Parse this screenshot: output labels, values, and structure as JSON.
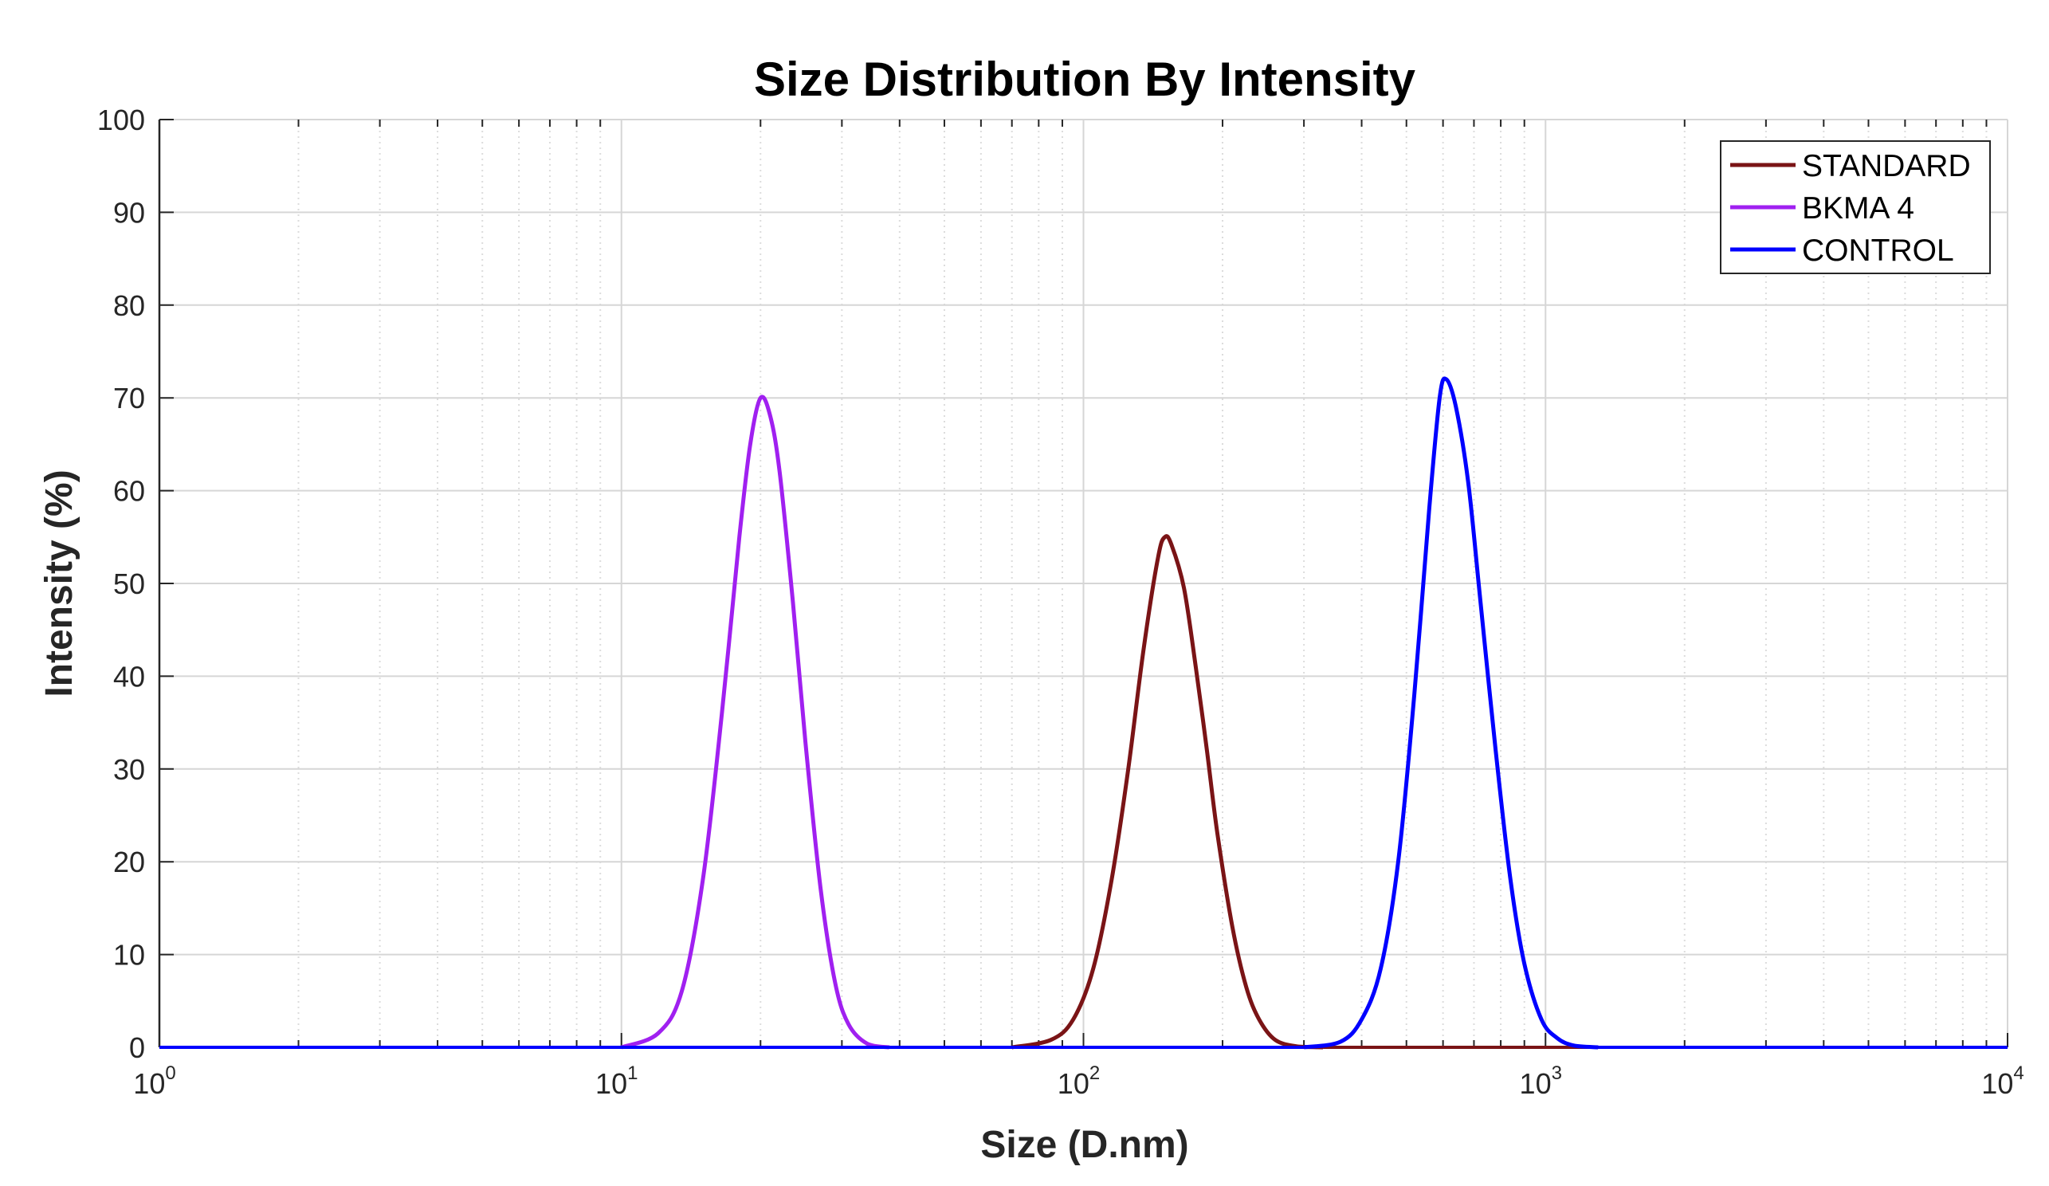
{
  "chart_data": {
    "type": "line",
    "title": "Size Distribution By Intensity",
    "xlabel": "Size (D.nm)",
    "ylabel": "Intensity (%)",
    "xscale": "log",
    "xlim": [
      1,
      10000
    ],
    "ylim": [
      0,
      100
    ],
    "x_ticks": [
      {
        "base": "10",
        "exp": "0"
      },
      {
        "base": "10",
        "exp": "1"
      },
      {
        "base": "10",
        "exp": "2"
      },
      {
        "base": "10",
        "exp": "3"
      },
      {
        "base": "10",
        "exp": "4"
      }
    ],
    "y_ticks": [
      "0",
      "10",
      "20",
      "30",
      "40",
      "50",
      "60",
      "70",
      "80",
      "90",
      "100"
    ],
    "grid": true,
    "legend_position": "top-right",
    "series": [
      {
        "name": "STANDARD",
        "color": "#7a1416",
        "x": [
          70,
          85,
          95,
          105,
          115,
          125,
          135,
          145,
          150,
          155,
          165,
          175,
          185,
          195,
          210,
          225,
          240,
          260,
          290,
          330
        ],
        "y": [
          0,
          0.8,
          3,
          8.5,
          18,
          30,
          43,
          52.8,
          55,
          54.2,
          49.5,
          41,
          32,
          23,
          13,
          6.5,
          3,
          0.8,
          0.1,
          0
        ]
      },
      {
        "name": "BKMA 4",
        "color": "#a020f0",
        "x": [
          10,
          12,
          13.5,
          15,
          16.5,
          18,
          19,
          20,
          21,
          22,
          23.5,
          25,
          27,
          29,
          31,
          34,
          38
        ],
        "y": [
          0,
          1.5,
          6,
          18,
          36,
          55,
          65,
          70,
          68,
          62,
          48,
          33,
          17,
          7,
          2.5,
          0.4,
          0
        ]
      },
      {
        "name": "CONTROL",
        "color": "#0000ff",
        "x": [
          300,
          360,
          400,
          440,
          480,
          520,
          560,
          590,
          610,
          640,
          680,
          720,
          780,
          840,
          900,
          980,
          1060,
          1150,
          1300
        ],
        "y": [
          0,
          0.6,
          3,
          8.5,
          20,
          38,
          58,
          70,
          72,
          69,
          61,
          49,
          32,
          18,
          9,
          3,
          1,
          0.2,
          0
        ]
      }
    ]
  }
}
